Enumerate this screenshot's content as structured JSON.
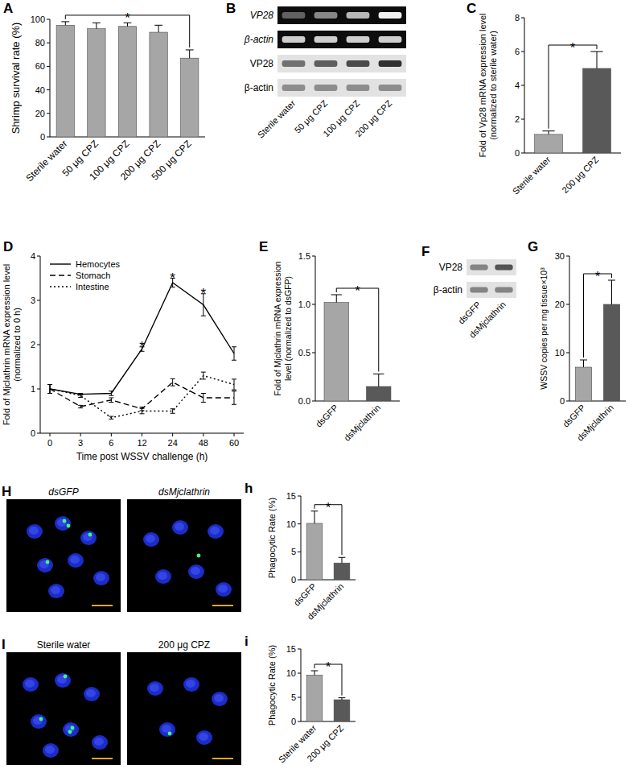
{
  "chart_data": [
    {
      "panel": "A",
      "type": "bar",
      "ylabel": "Shrimp survival rate (%)",
      "categories": [
        "Sterile water",
        "50 μg CPZ",
        "100 μg CPZ",
        "200 μg CPZ",
        "500 μg CPZ"
      ],
      "values": [
        95,
        92,
        94,
        89,
        67
      ],
      "error": [
        3,
        5,
        3,
        6,
        7
      ],
      "color": "#a6a6a6",
      "ylim": [
        0,
        100
      ],
      "yticks": [
        0,
        20,
        40,
        60,
        80,
        100
      ],
      "annotations": [
        {
          "text": "*",
          "from": 0,
          "to": 4
        }
      ]
    },
    {
      "panel": "C",
      "type": "bar",
      "ylabel": [
        "Fold of Vp28 mRNA expression level",
        "(normalized to sterile water)"
      ],
      "categories": [
        "Sterile water",
        "200 μg CPZ"
      ],
      "values": [
        1.1,
        5
      ],
      "error": [
        0.2,
        1
      ],
      "colors": [
        "#a6a6a6",
        "#595959"
      ],
      "ylim": [
        0,
        8
      ],
      "yticks": [
        0,
        2,
        4,
        6,
        8
      ],
      "annotations": [
        {
          "text": "*",
          "from": 0,
          "to": 1
        }
      ]
    },
    {
      "panel": "D",
      "type": "line",
      "ylabel": [
        "Fold of Mjclathrin mRNA expression level",
        "(normalized to 0 h)"
      ],
      "xlabel": "Time post WSSV challenge (h)",
      "categories": [
        0,
        3,
        6,
        12,
        24,
        48,
        60
      ],
      "ylim": [
        0,
        4
      ],
      "yticks": [
        0,
        1,
        2,
        3,
        4
      ],
      "legend": "upper left",
      "series": [
        {
          "name": "Hemocytes",
          "color": "#000000",
          "line_style": "solid",
          "values": [
            1.0,
            0.88,
            0.9,
            1.9,
            3.4,
            2.9,
            1.8
          ],
          "error": [
            0.1,
            0.02,
            0.05,
            0.05,
            0.1,
            0.25,
            0.15
          ]
        },
        {
          "name": "Stomach",
          "color": "#000000",
          "line_style": "dashed",
          "values": [
            1.0,
            0.6,
            0.75,
            0.55,
            1.15,
            0.8,
            0.8
          ],
          "error": [
            0.1,
            0.03,
            0.05,
            0.04,
            0.08,
            0.1,
            0.15
          ]
        },
        {
          "name": "Intestine",
          "color": "#000000",
          "line_style": "dotted",
          "values": [
            1.0,
            0.85,
            0.35,
            0.5,
            0.5,
            1.3,
            1.1
          ],
          "error": [
            0.1,
            0.04,
            0.03,
            0.06,
            0.05,
            0.08,
            0.12
          ]
        }
      ],
      "annotations": [
        {
          "text": "*",
          "at": 3
        },
        {
          "text": "*",
          "at": 4
        },
        {
          "text": "*",
          "at": 5
        }
      ]
    },
    {
      "panel": "E",
      "type": "bar",
      "ylabel": [
        "Fold of Mjclathrin mRNA expression",
        "level (normalized to dsGFP)"
      ],
      "categories": [
        "dsGFP",
        "dsMjclathrin"
      ],
      "values": [
        1.02,
        0.15
      ],
      "error": [
        0.08,
        0.13
      ],
      "colors": [
        "#a6a6a6",
        "#595959"
      ],
      "ylim": [
        0,
        1.5
      ],
      "yticks": [
        {
          "value": 0,
          "label": "0.0"
        },
        0.5,
        {
          "value": 1,
          "label": "1.0"
        },
        1.5
      ],
      "annotations": [
        {
          "text": "*",
          "from": 0,
          "to": 1
        }
      ]
    },
    {
      "panel": "G",
      "type": "bar",
      "ylabel": "WSSV copies per mg tissue×10³",
      "categories": [
        "dsGFP",
        "dsMjclathrin"
      ],
      "values": [
        7,
        20
      ],
      "error": [
        1.5,
        5
      ],
      "colors": [
        "#a6a6a6",
        "#595959"
      ],
      "ylim": [
        0,
        30
      ],
      "yticks": [
        0,
        10,
        20,
        30
      ],
      "annotations": [
        {
          "text": "*",
          "from": 0,
          "to": 1
        }
      ]
    },
    {
      "panel": "h",
      "type": "bar",
      "ylabel": "Phagocytic Rate (%)",
      "categories": [
        "dsGFP",
        "dsMjclathrin"
      ],
      "values": [
        10.1,
        3
      ],
      "error": [
        2.2,
        1
      ],
      "colors": [
        "#a6a6a6",
        "#595959"
      ],
      "ylim": [
        0,
        15
      ],
      "yticks": [
        0,
        5,
        10,
        15
      ],
      "annotations": [
        {
          "text": "*",
          "from": 0,
          "to": 1
        }
      ]
    },
    {
      "panel": "i",
      "type": "bar",
      "ylabel": "Phagocytic Rate (%)",
      "categories": [
        "Sterile water",
        "200 μg CPZ"
      ],
      "values": [
        9.6,
        4.5
      ],
      "error": [
        0.9,
        0.4
      ],
      "colors": [
        "#a6a6a6",
        "#595959"
      ],
      "ylim": [
        0,
        15
      ],
      "yticks": [
        0,
        5,
        10,
        15
      ],
      "annotations": [
        {
          "text": "*",
          "from": 0,
          "to": 1
        }
      ]
    }
  ],
  "blots": [
    {
      "panel": "B",
      "lanes": [
        "Sterile water",
        "50 μg CPZ",
        "100 μg CPZ",
        "200 μg CPZ"
      ],
      "rows": [
        {
          "label": "VP28",
          "type": "gel",
          "values": [
            0.35,
            0.5,
            0.7,
            0.95
          ]
        },
        {
          "label": "β-actin",
          "type": "gel",
          "values": [
            0.8,
            0.8,
            0.8,
            0.8
          ]
        },
        {
          "label": "VP28",
          "type": "western",
          "values": [
            0.6,
            0.7,
            0.8,
            0.95
          ]
        },
        {
          "label": "β-actin",
          "type": "western",
          "values": [
            0.45,
            0.45,
            0.45,
            0.45
          ]
        }
      ]
    },
    {
      "panel": "F",
      "lanes": [
        "dsGFP",
        "dsMjclathrin"
      ],
      "rows": [
        {
          "label": "VP28",
          "type": "western",
          "values": [
            0.5,
            0.75
          ]
        },
        {
          "label": "β-actin",
          "type": "western",
          "values": [
            0.5,
            0.5
          ]
        }
      ]
    }
  ],
  "micrographs": [
    {
      "panel": "H",
      "images": [
        {
          "title": "dsGFP"
        },
        {
          "title": "dsMjclathrin"
        }
      ]
    },
    {
      "panel": "I",
      "images": [
        {
          "title": "Sterile water"
        },
        {
          "title": "200 μg CPZ"
        }
      ]
    }
  ]
}
